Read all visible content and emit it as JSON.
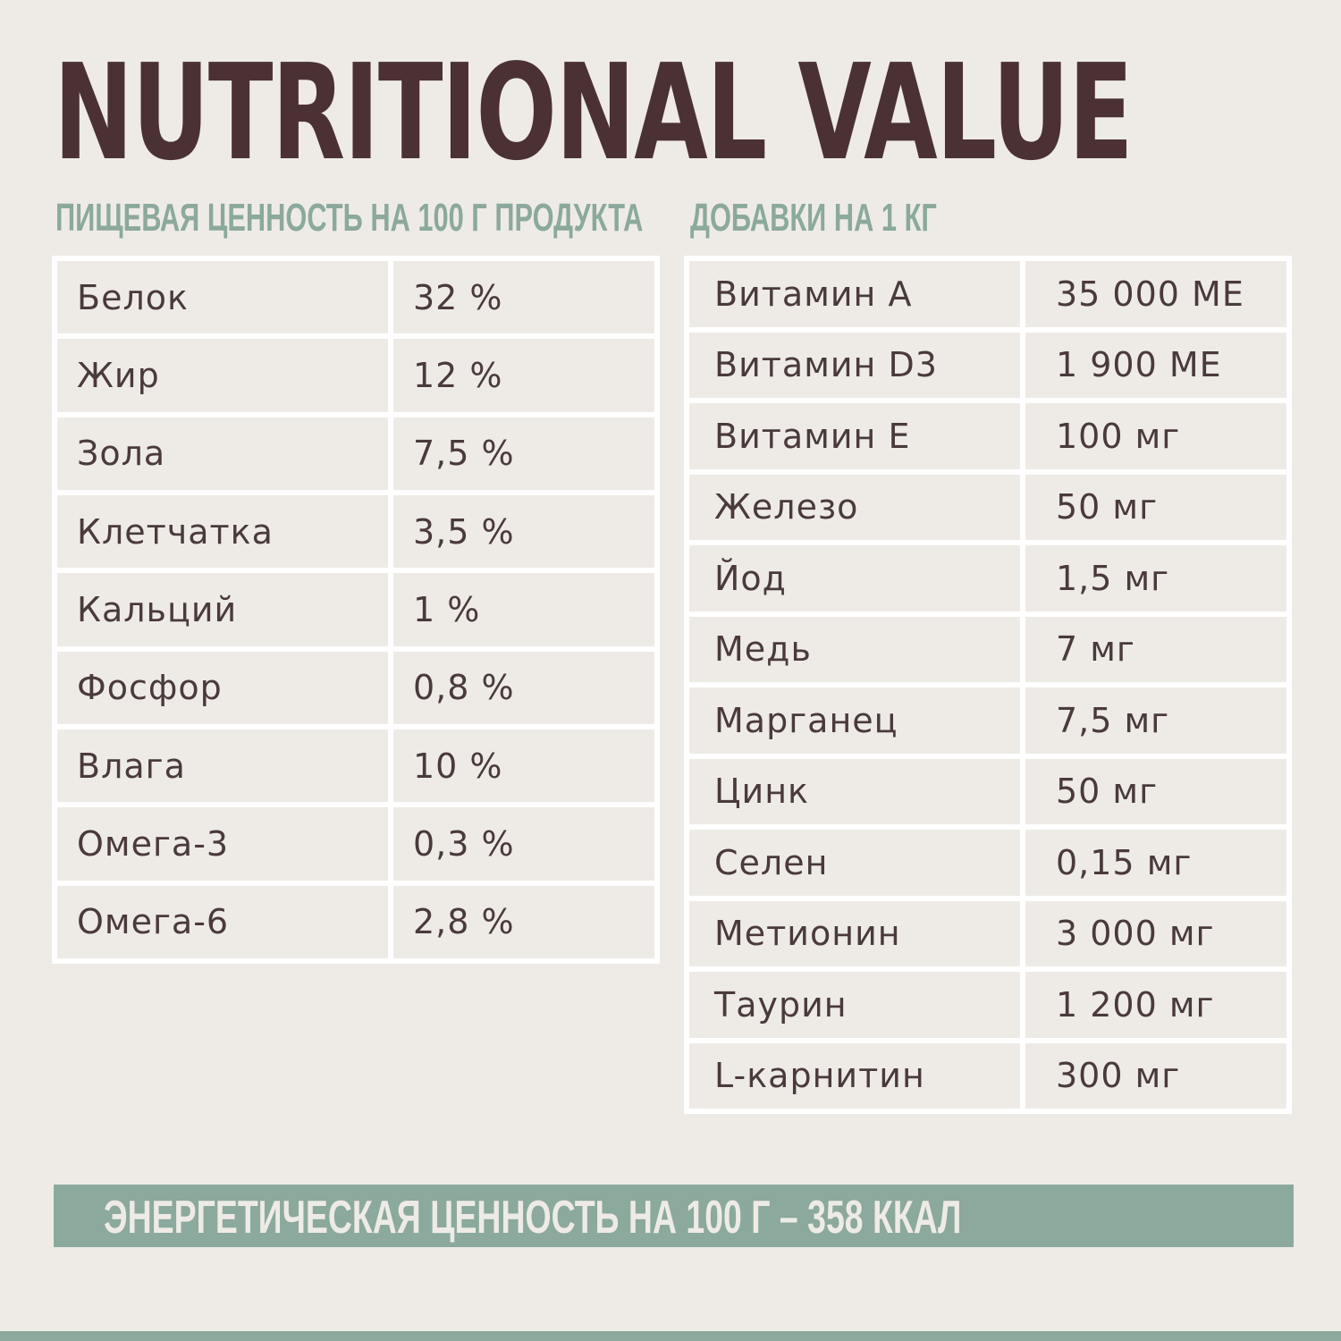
{
  "title": "NUTRITIONAL VALUE",
  "left_section": {
    "heading": "ПИЩЕВАЯ ЦЕННОСТЬ НА 100 Г ПРОДУКТА",
    "rows": [
      {
        "name": "Белок",
        "value": "32 %"
      },
      {
        "name": "Жир",
        "value": "12 %"
      },
      {
        "name": "Зола",
        "value": "7,5 %"
      },
      {
        "name": "Клетчатка",
        "value": "3,5 %"
      },
      {
        "name": "Кальций",
        "value": "1 %"
      },
      {
        "name": "Фосфор",
        "value": "0,8 %"
      },
      {
        "name": "Влага",
        "value": "10 %"
      },
      {
        "name": "Омега-3",
        "value": "0,3 %"
      },
      {
        "name": "Омега-6",
        "value": "2,8 %"
      }
    ]
  },
  "right_section": {
    "heading": "ДОБАВКИ НА 1 КГ",
    "rows": [
      {
        "name": "Витамин А",
        "value": "35 000 МЕ"
      },
      {
        "name": "Витамин D3",
        "value": "1 900 МЕ"
      },
      {
        "name": "Витамин Е",
        "value": "100 мг"
      },
      {
        "name": "Железо",
        "value": "50 мг"
      },
      {
        "name": "Йод",
        "value": "1,5 мг"
      },
      {
        "name": "Медь",
        "value": "7 мг"
      },
      {
        "name": "Марганец",
        "value": "7,5 мг"
      },
      {
        "name": "Цинк",
        "value": "50 мг"
      },
      {
        "name": "Селен",
        "value": "0,15 мг"
      },
      {
        "name": "Метионин",
        "value": "3 000 мг"
      },
      {
        "name": "Таурин",
        "value": "1 200 мг"
      },
      {
        "name": "L-карнитин",
        "value": "300 мг"
      }
    ]
  },
  "energy": "ЭНЕРГЕТИЧЕСКАЯ ЦЕННОСТЬ НА 100 Г – 358 ККАЛ",
  "colors": {
    "background": "#eeebe6",
    "title": "#4b3134",
    "accent": "#8ba99c",
    "text": "#4a3a3c"
  }
}
